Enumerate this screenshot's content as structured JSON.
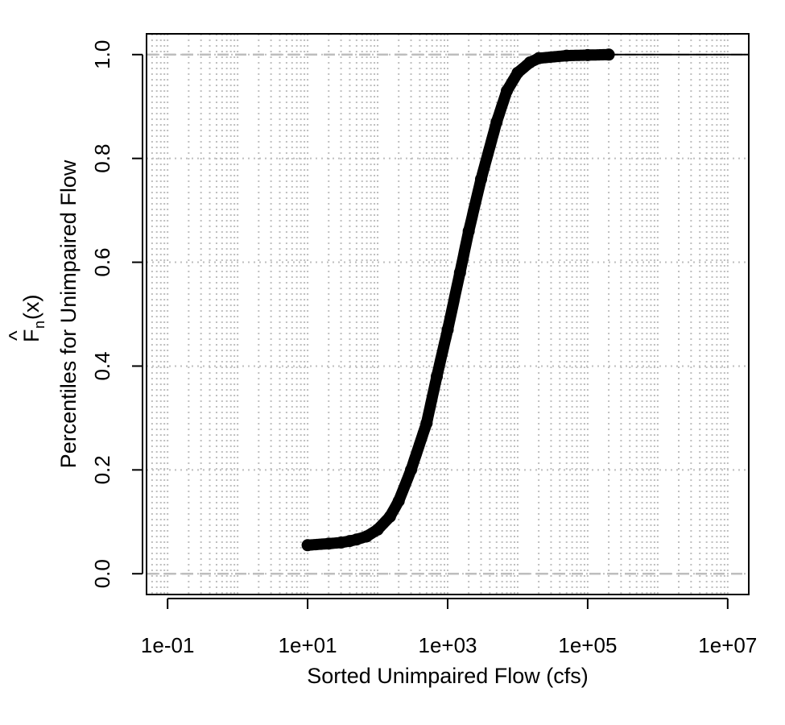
{
  "chart_data": {
    "type": "scatter",
    "title": "",
    "xlabel": "Sorted Unimpaired Flow (cfs)",
    "ylabel_line1": "Percentiles for Unimpaired Flow",
    "ylabel_line2_hat": "^",
    "ylabel_line2_F": "F",
    "ylabel_line2_sub": "n",
    "ylabel_line2_arg": "(x)",
    "x_scale": "log10",
    "xlim": [
      0.05,
      20000000
    ],
    "ylim": [
      -0.04,
      1.04
    ],
    "x_ticks": [
      0.1,
      10,
      1000,
      100000,
      10000000
    ],
    "x_tick_labels": [
      "1e-01",
      "1e+01",
      "1e+03",
      "1e+05",
      "1e+07"
    ],
    "y_ticks": [
      0,
      0.2,
      0.4,
      0.6,
      0.8,
      1
    ],
    "y_tick_labels": [
      "0.0",
      "0.2",
      "0.4",
      "0.6",
      "0.8",
      "1.0"
    ],
    "grid": true,
    "reference_lines_y": [
      0,
      1
    ],
    "series": [
      {
        "points": [
          [
            10,
            0.055
          ],
          [
            20,
            0.058
          ],
          [
            30,
            0.06
          ],
          [
            40,
            0.063
          ],
          [
            50,
            0.066
          ],
          [
            70,
            0.072
          ],
          [
            100,
            0.085
          ],
          [
            150,
            0.11
          ],
          [
            200,
            0.14
          ],
          [
            300,
            0.2
          ],
          [
            500,
            0.29
          ],
          [
            700,
            0.38
          ],
          [
            1000,
            0.47
          ],
          [
            1500,
            0.58
          ],
          [
            2000,
            0.66
          ],
          [
            3000,
            0.76
          ],
          [
            5000,
            0.87
          ],
          [
            7000,
            0.93
          ],
          [
            10000,
            0.965
          ],
          [
            15000,
            0.985
          ],
          [
            20000,
            0.993
          ],
          [
            50000,
            0.998
          ],
          [
            100000,
            0.999
          ],
          [
            200000,
            1.0
          ]
        ]
      }
    ],
    "colors": {
      "points": "#000000",
      "grid": "#bebebe",
      "reference": "#bebebe"
    }
  }
}
